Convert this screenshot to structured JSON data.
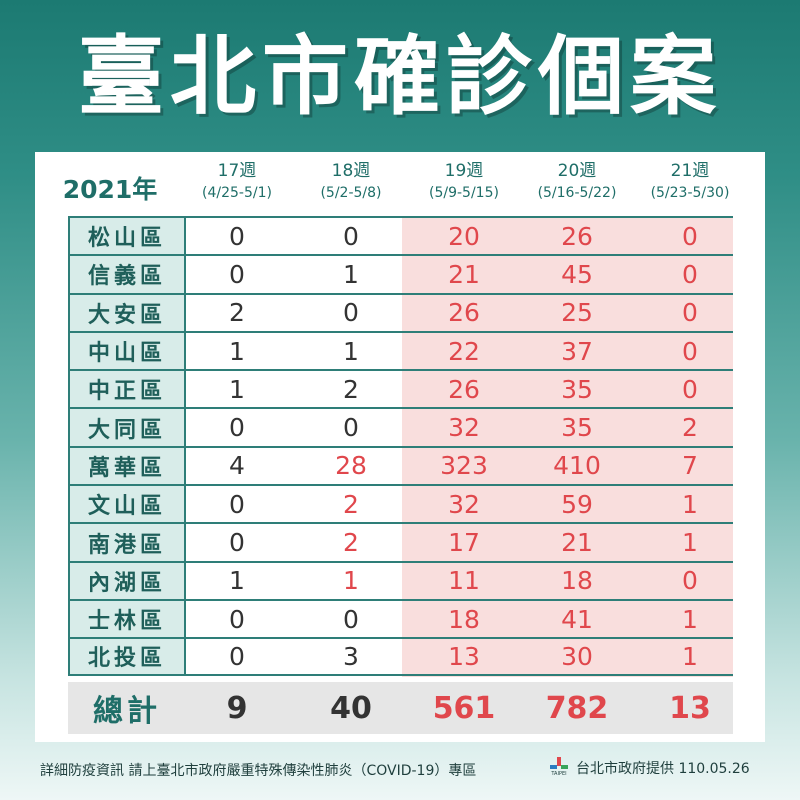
{
  "title": "臺北市確診個案",
  "year": "2021年",
  "weeks": [
    {
      "week": "17週",
      "range": "(4/25-5/1)"
    },
    {
      "week": "18週",
      "range": "(5/2-5/8)"
    },
    {
      "week": "19週",
      "range": "(5/9-5/15)"
    },
    {
      "week": "20週",
      "range": "(5/16-5/22)"
    },
    {
      "week": "21週",
      "range": "(5/23-5/30)"
    }
  ],
  "rows": [
    {
      "district": "松山區",
      "values": [
        "0",
        "0",
        "20",
        "26",
        "0"
      ]
    },
    {
      "district": "信義區",
      "values": [
        "0",
        "1",
        "21",
        "45",
        "0"
      ]
    },
    {
      "district": "大安區",
      "values": [
        "2",
        "0",
        "26",
        "25",
        "0"
      ]
    },
    {
      "district": "中山區",
      "values": [
        "1",
        "1",
        "22",
        "37",
        "0"
      ]
    },
    {
      "district": "中正區",
      "values": [
        "1",
        "2",
        "26",
        "35",
        "0"
      ]
    },
    {
      "district": "大同區",
      "values": [
        "0",
        "0",
        "32",
        "35",
        "2"
      ]
    },
    {
      "district": "萬華區",
      "values": [
        "4",
        "28",
        "323",
        "410",
        "7"
      ]
    },
    {
      "district": "文山區",
      "values": [
        "0",
        "2",
        "32",
        "59",
        "1"
      ]
    },
    {
      "district": "南港區",
      "values": [
        "0",
        "2",
        "17",
        "21",
        "1"
      ]
    },
    {
      "district": "內湖區",
      "values": [
        "1",
        "1",
        "11",
        "18",
        "0"
      ]
    },
    {
      "district": "士林區",
      "values": [
        "0",
        "0",
        "18",
        "41",
        "1"
      ]
    },
    {
      "district": "北投區",
      "values": [
        "0",
        "3",
        "13",
        "30",
        "1"
      ]
    }
  ],
  "red_cells": [
    [
      false,
      false,
      true,
      true,
      true
    ],
    [
      false,
      false,
      true,
      true,
      true
    ],
    [
      false,
      false,
      true,
      true,
      true
    ],
    [
      false,
      false,
      true,
      true,
      true
    ],
    [
      false,
      false,
      true,
      true,
      true
    ],
    [
      false,
      false,
      true,
      true,
      true
    ],
    [
      false,
      true,
      true,
      true,
      true
    ],
    [
      false,
      true,
      true,
      true,
      true
    ],
    [
      false,
      true,
      true,
      true,
      true
    ],
    [
      false,
      true,
      true,
      true,
      true
    ],
    [
      false,
      false,
      true,
      true,
      true
    ],
    [
      false,
      false,
      true,
      true,
      true
    ]
  ],
  "total": {
    "label": "總計",
    "values": [
      "9",
      "40",
      "561",
      "782",
      "13"
    ],
    "red": [
      false,
      false,
      true,
      true,
      true
    ]
  },
  "footer": "詳細防疫資訊 請上臺北市政府嚴重特殊傳染性肺炎（COVID-19）專區",
  "logo_text": "TAIPEI",
  "credit": "台北市政府提供 110.05.26",
  "colors": {
    "teal": "#1f6e68",
    "red": "#e0474c",
    "pink": "#f9dedd",
    "label_bg": "#d8ece9"
  }
}
